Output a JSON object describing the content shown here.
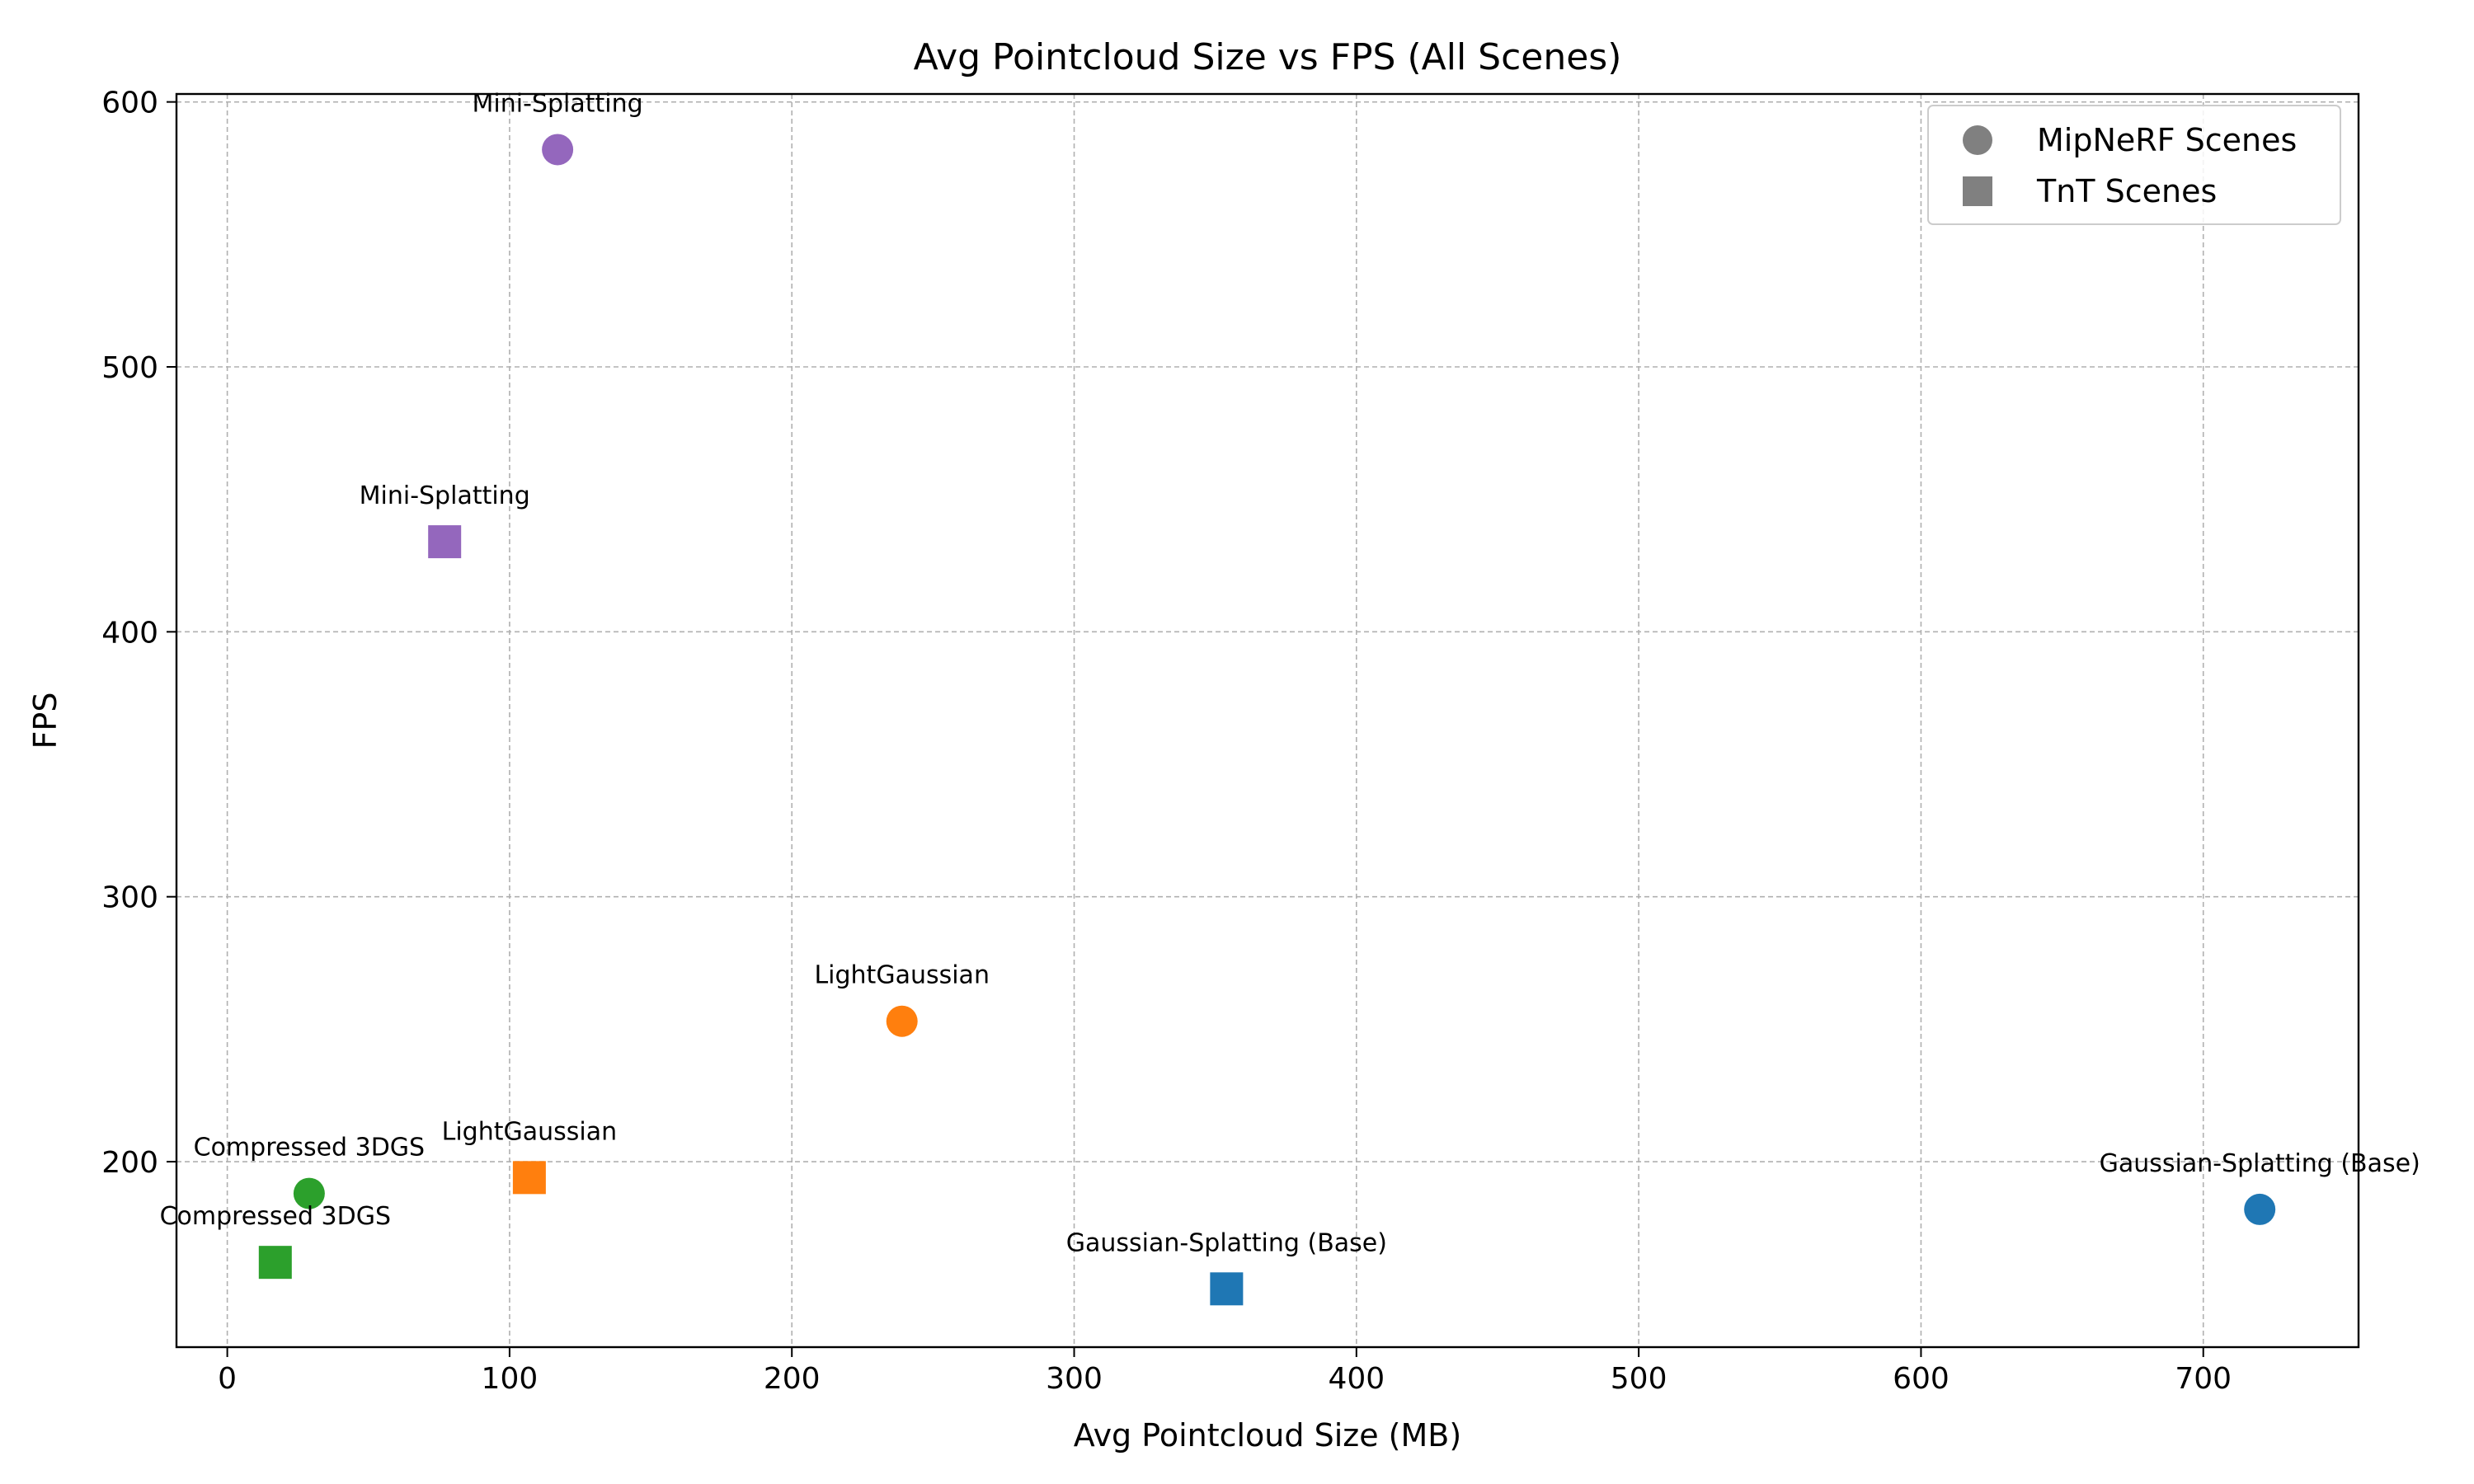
{
  "chart_data": {
    "type": "scatter",
    "title": "Avg Pointcloud Size vs FPS (All Scenes)",
    "xlabel": "Avg Pointcloud Size (MB)",
    "ylabel": "FPS",
    "xlim": [
      -18,
      755
    ],
    "ylim": [
      130,
      603
    ],
    "xticks": [
      0,
      100,
      200,
      300,
      400,
      500,
      600,
      700
    ],
    "yticks": [
      200,
      300,
      400,
      500,
      600
    ],
    "grid": true,
    "legend": {
      "placement": "top-right",
      "entries": [
        {
          "label": "MipNeRF Scenes",
          "marker": "circle"
        },
        {
          "label": "TnT Scenes",
          "marker": "square"
        }
      ]
    },
    "points": [
      {
        "label": "Mini-Splatting",
        "x": 117,
        "y": 582,
        "marker": "circle",
        "color": "#9467bd"
      },
      {
        "label": "Mini-Splatting",
        "x": 77,
        "y": 434,
        "marker": "square",
        "color": "#9467bd"
      },
      {
        "label": "LightGaussian",
        "x": 239,
        "y": 253,
        "marker": "circle",
        "color": "#ff7f0e"
      },
      {
        "label": "LightGaussian",
        "x": 107,
        "y": 194,
        "marker": "square",
        "color": "#ff7f0e"
      },
      {
        "label": "Compressed 3DGS",
        "x": 29,
        "y": 188,
        "marker": "circle",
        "color": "#2ca02c"
      },
      {
        "label": "Compressed 3DGS",
        "x": 17,
        "y": 162,
        "marker": "square",
        "color": "#2ca02c"
      },
      {
        "label": "Gaussian-Splatting (Base)",
        "x": 354,
        "y": 152,
        "marker": "square",
        "color": "#1f77b4"
      },
      {
        "label": "Gaussian-Splatting (Base)",
        "x": 720,
        "y": 182,
        "marker": "circle",
        "color": "#1f77b4"
      }
    ]
  }
}
